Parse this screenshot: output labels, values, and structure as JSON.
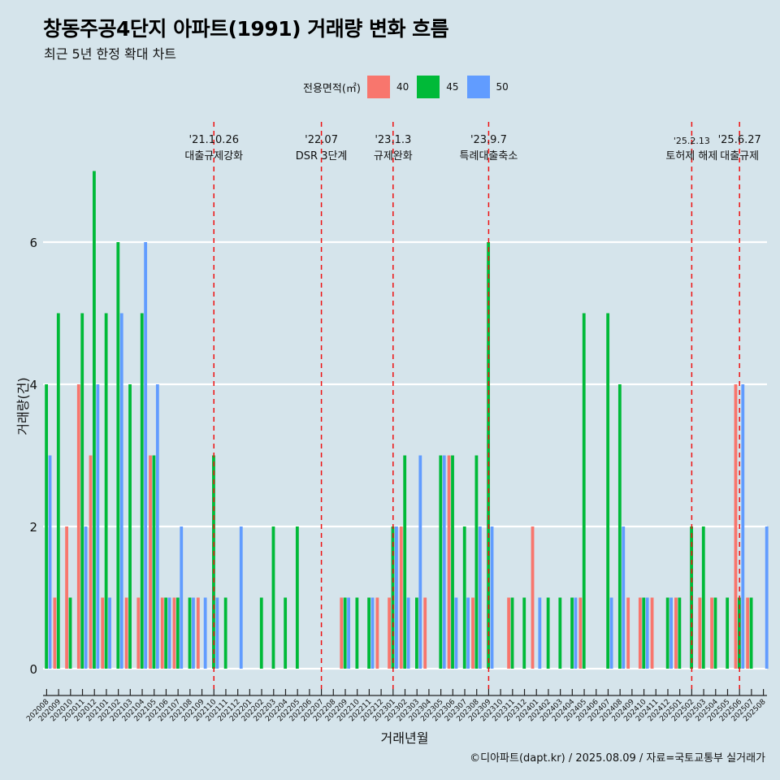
{
  "title": "창동주공4단지 아파트(1991) 거래량 변화 흐름",
  "subtitle": "최근 5년 한정 확대 차트",
  "caption": "©디아파트(dapt.kr) / 2025.08.09 / 자료=국토교통부 실거래가",
  "chart_data": {
    "type": "bar",
    "xlabel": "거래년월",
    "ylabel": "거래량(건)",
    "ylim": [
      -0.3,
      7.2
    ],
    "yticks": [
      0,
      2,
      4,
      6
    ],
    "grid": true,
    "legend": {
      "title": "전용면적(㎡)",
      "position": "top"
    },
    "categories": [
      "202008",
      "202009",
      "202010",
      "202011",
      "202012",
      "202101",
      "202102",
      "202103",
      "202104",
      "202105",
      "202106",
      "202107",
      "202108",
      "202109",
      "202110",
      "202111",
      "202112",
      "202201",
      "202202",
      "202203",
      "202204",
      "202205",
      "202206",
      "202207",
      "202208",
      "202209",
      "202210",
      "202211",
      "202212",
      "202301",
      "202302",
      "202303",
      "202304",
      "202305",
      "202306",
      "202307",
      "202308",
      "202309",
      "202310",
      "202311",
      "202312",
      "202401",
      "202402",
      "202403",
      "202404",
      "202405",
      "202406",
      "202407",
      "202408",
      "202409",
      "202410",
      "202411",
      "202412",
      "202501",
      "202502",
      "202503",
      "202504",
      "202505",
      "202506",
      "202507",
      "202508"
    ],
    "series": [
      {
        "name": "40",
        "color": "#f8766d",
        "values": [
          0,
          1,
          2,
          4,
          3,
          1,
          0,
          1,
          1,
          3,
          1,
          1,
          0,
          1,
          0,
          0,
          0,
          0,
          0,
          0,
          0,
          0,
          0,
          0,
          0,
          1,
          0,
          0,
          1,
          1,
          2,
          0,
          1,
          0,
          3,
          0,
          1,
          0,
          0,
          1,
          0,
          2,
          0,
          0,
          0,
          1,
          0,
          0,
          0,
          1,
          1,
          1,
          0,
          1,
          0,
          1,
          1,
          0,
          4,
          1,
          0
        ]
      },
      {
        "name": "45",
        "color": "#00ba38",
        "values": [
          4,
          5,
          1,
          5,
          7,
          5,
          6,
          4,
          5,
          3,
          1,
          1,
          1,
          0,
          3,
          1,
          0,
          0,
          1,
          2,
          1,
          2,
          0,
          0,
          0,
          1,
          1,
          1,
          0,
          2,
          3,
          1,
          0,
          3,
          3,
          2,
          3,
          6,
          0,
          1,
          1,
          0,
          1,
          1,
          1,
          5,
          0,
          5,
          4,
          0,
          1,
          0,
          1,
          1,
          2,
          2,
          1,
          1,
          1,
          1,
          0
        ]
      },
      {
        "name": "50",
        "color": "#619cff",
        "values": [
          3,
          0,
          0,
          2,
          4,
          1,
          5,
          0,
          6,
          4,
          1,
          2,
          1,
          1,
          1,
          0,
          2,
          0,
          0,
          0,
          0,
          0,
          0,
          0,
          0,
          1,
          0,
          1,
          0,
          2,
          1,
          3,
          0,
          3,
          1,
          1,
          2,
          2,
          0,
          0,
          0,
          1,
          0,
          0,
          1,
          0,
          0,
          1,
          2,
          0,
          1,
          0,
          1,
          0,
          0,
          0,
          0,
          0,
          4,
          0,
          2
        ]
      }
    ],
    "annotations": [
      {
        "category": "202110",
        "date": "'21.10.26",
        "label": "대출규제강화"
      },
      {
        "category": "202207",
        "date": "'22.07",
        "label": "DSR 3단계"
      },
      {
        "category": "202301",
        "date": "'23.1.3",
        "label": "규제완화"
      },
      {
        "category": "202309",
        "date": "'23.9.7",
        "label": "특례대출축소"
      },
      {
        "category": "202502",
        "date": "'25.2.13",
        "label": "토허제 해제"
      },
      {
        "category": "202506",
        "date": "'25.6.27",
        "label": "대출규제"
      }
    ]
  }
}
